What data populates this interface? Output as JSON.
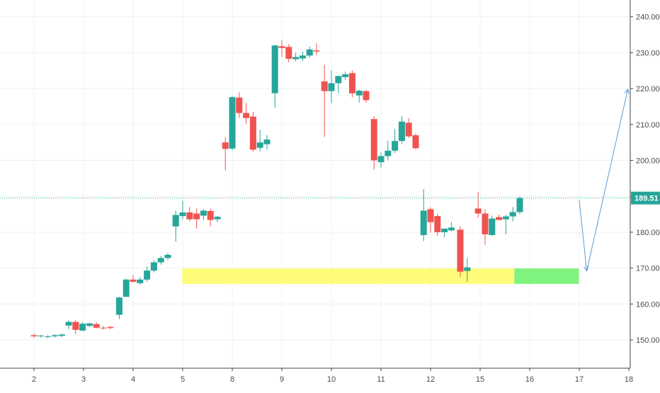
{
  "chart_data": {
    "type": "candlestick",
    "x_ticks": [
      "2",
      "3",
      "4",
      "5",
      "8",
      "9",
      "10",
      "11",
      "12",
      "15",
      "16",
      "17",
      "18"
    ],
    "y_ticks": [
      "150.00",
      "160.00",
      "170.00",
      "180.00",
      "190.00",
      "200.00",
      "210.00",
      "220.00",
      "230.00",
      "240.00"
    ],
    "y_range": [
      142,
      243
    ],
    "grid": true,
    "colors": {
      "up": "#26a69a",
      "down": "#ef5350",
      "last_price_line": "#26a69a",
      "projection_arrow": "#5b9bd5",
      "support_zone": "#fffc7a",
      "target_zone": "#80f27e"
    },
    "last_price": {
      "value": 189.51,
      "label": "189.51"
    },
    "zones": [
      {
        "name": "support-zone",
        "x": [
          2.99,
          9.69
        ],
        "y": [
          165.6,
          169.9
        ],
        "color": "#fffc7a"
      },
      {
        "name": "target-zone",
        "x": [
          9.69,
          10.99
        ],
        "y": [
          165.6,
          169.9
        ],
        "color": "#80f27e"
      }
    ],
    "projection_arrow": [
      {
        "x": 11.0,
        "y": 189
      },
      {
        "x": 11.15,
        "y": 169.2
      },
      {
        "x": 11.98,
        "y": 219.8
      }
    ],
    "candles": [
      {
        "x": 0.0,
        "o": 151.3,
        "h": 151.8,
        "l": 150.6,
        "c": 151.0
      },
      {
        "x": 0.14,
        "o": 151.0,
        "h": 151.4,
        "l": 150.6,
        "c": 151.2
      },
      {
        "x": 0.28,
        "o": 150.8,
        "h": 151.3,
        "l": 150.4,
        "c": 151.0
      },
      {
        "x": 0.42,
        "o": 151.0,
        "h": 151.6,
        "l": 150.7,
        "c": 151.3
      },
      {
        "x": 0.56,
        "o": 151.1,
        "h": 151.7,
        "l": 150.8,
        "c": 151.5
      },
      {
        "x": 0.7,
        "o": 154.0,
        "h": 155.5,
        "l": 153.0,
        "c": 155.0
      },
      {
        "x": 0.84,
        "o": 155.0,
        "h": 155.5,
        "l": 151.6,
        "c": 152.8
      },
      {
        "x": 0.98,
        "o": 152.6,
        "h": 154.9,
        "l": 152.4,
        "c": 154.5
      },
      {
        "x": 1.12,
        "o": 153.9,
        "h": 154.8,
        "l": 153.6,
        "c": 154.6
      },
      {
        "x": 1.26,
        "o": 154.4,
        "h": 154.9,
        "l": 153.2,
        "c": 153.4
      },
      {
        "x": 1.4,
        "o": 153.4,
        "h": 153.9,
        "l": 152.8,
        "c": 153.3
      },
      {
        "x": 1.54,
        "o": 153.6,
        "h": 154.0,
        "l": 152.9,
        "c": 153.3
      },
      {
        "x": 1.72,
        "o": 157.0,
        "h": 162.0,
        "l": 155.8,
        "c": 161.8
      },
      {
        "x": 1.86,
        "o": 162.0,
        "h": 167.0,
        "l": 162.0,
        "c": 166.8
      },
      {
        "x": 2.0,
        "o": 166.8,
        "h": 168.0,
        "l": 166.0,
        "c": 166.2
      },
      {
        "x": 2.14,
        "o": 165.8,
        "h": 167.5,
        "l": 165.4,
        "c": 166.8
      },
      {
        "x": 2.28,
        "o": 166.8,
        "h": 170.5,
        "l": 166.2,
        "c": 169.3
      },
      {
        "x": 2.42,
        "o": 169.3,
        "h": 172.2,
        "l": 168.8,
        "c": 171.6
      },
      {
        "x": 2.56,
        "o": 171.6,
        "h": 173.4,
        "l": 171.0,
        "c": 172.8
      },
      {
        "x": 2.7,
        "o": 172.8,
        "h": 174.2,
        "l": 172.3,
        "c": 173.7
      },
      {
        "x": 2.86,
        "o": 181.6,
        "h": 186.0,
        "l": 177.4,
        "c": 184.8
      },
      {
        "x": 3.0,
        "o": 184.5,
        "h": 188.8,
        "l": 183.6,
        "c": 185.5
      },
      {
        "x": 3.14,
        "o": 185.5,
        "h": 187.0,
        "l": 183.0,
        "c": 183.6
      },
      {
        "x": 3.28,
        "o": 185.2,
        "h": 186.6,
        "l": 181.0,
        "c": 183.6
      },
      {
        "x": 3.42,
        "o": 184.6,
        "h": 186.4,
        "l": 183.3,
        "c": 186.0
      },
      {
        "x": 3.56,
        "o": 185.9,
        "h": 186.6,
        "l": 181.6,
        "c": 183.4
      },
      {
        "x": 3.7,
        "o": 183.6,
        "h": 184.5,
        "l": 182.8,
        "c": 184.3
      },
      {
        "x": 3.86,
        "o": 205.0,
        "h": 206.5,
        "l": 197.2,
        "c": 203.2
      },
      {
        "x": 4.0,
        "o": 203.3,
        "h": 218.0,
        "l": 202.8,
        "c": 217.6
      },
      {
        "x": 4.14,
        "o": 217.5,
        "h": 219.0,
        "l": 211.8,
        "c": 213.2
      },
      {
        "x": 4.28,
        "o": 213.2,
        "h": 216.0,
        "l": 210.2,
        "c": 211.8
      },
      {
        "x": 4.42,
        "o": 212.2,
        "h": 213.5,
        "l": 202.5,
        "c": 203.0
      },
      {
        "x": 4.56,
        "o": 203.5,
        "h": 208.5,
        "l": 202.5,
        "c": 205.0
      },
      {
        "x": 4.7,
        "o": 204.5,
        "h": 207.0,
        "l": 203.0,
        "c": 205.8
      },
      {
        "x": 4.86,
        "o": 218.7,
        "h": 232.3,
        "l": 214.7,
        "c": 232.0
      },
      {
        "x": 5.0,
        "o": 231.8,
        "h": 233.5,
        "l": 228.8,
        "c": 231.3
      },
      {
        "x": 5.14,
        "o": 231.6,
        "h": 232.4,
        "l": 227.3,
        "c": 228.3
      },
      {
        "x": 5.28,
        "o": 228.2,
        "h": 230.0,
        "l": 227.6,
        "c": 228.8
      },
      {
        "x": 5.42,
        "o": 228.4,
        "h": 230.3,
        "l": 227.6,
        "c": 229.2
      },
      {
        "x": 5.56,
        "o": 229.2,
        "h": 231.7,
        "l": 228.6,
        "c": 230.9
      },
      {
        "x": 5.7,
        "o": 230.6,
        "h": 232.6,
        "l": 229.4,
        "c": 230.3
      },
      {
        "x": 5.86,
        "o": 222.0,
        "h": 226.6,
        "l": 206.5,
        "c": 219.3
      },
      {
        "x": 6.0,
        "o": 219.3,
        "h": 225.0,
        "l": 216.0,
        "c": 221.5
      },
      {
        "x": 6.14,
        "o": 221.5,
        "h": 223.6,
        "l": 218.8,
        "c": 223.5
      },
      {
        "x": 6.28,
        "o": 223.2,
        "h": 224.7,
        "l": 222.4,
        "c": 224.0
      },
      {
        "x": 6.42,
        "o": 224.3,
        "h": 225.0,
        "l": 217.6,
        "c": 218.7
      },
      {
        "x": 6.56,
        "o": 218.1,
        "h": 219.7,
        "l": 216.1,
        "c": 219.4
      },
      {
        "x": 6.7,
        "o": 219.3,
        "h": 219.6,
        "l": 216.1,
        "c": 216.8
      },
      {
        "x": 6.86,
        "o": 211.5,
        "h": 212.3,
        "l": 197.5,
        "c": 200.0
      },
      {
        "x": 7.0,
        "o": 199.5,
        "h": 202.2,
        "l": 198.0,
        "c": 201.2
      },
      {
        "x": 7.14,
        "o": 201.2,
        "h": 205.5,
        "l": 200.0,
        "c": 202.7
      },
      {
        "x": 7.28,
        "o": 202.7,
        "h": 208.8,
        "l": 202.1,
        "c": 205.4
      },
      {
        "x": 7.42,
        "o": 205.4,
        "h": 212.3,
        "l": 204.6,
        "c": 210.8
      },
      {
        "x": 7.56,
        "o": 210.5,
        "h": 211.8,
        "l": 206.2,
        "c": 206.7
      },
      {
        "x": 7.7,
        "o": 207.0,
        "h": 207.5,
        "l": 203.0,
        "c": 203.4
      },
      {
        "x": 7.86,
        "o": 179.2,
        "h": 192.0,
        "l": 177.5,
        "c": 186.0
      },
      {
        "x": 8.0,
        "o": 186.4,
        "h": 186.9,
        "l": 179.9,
        "c": 182.8
      },
      {
        "x": 8.14,
        "o": 184.5,
        "h": 185.2,
        "l": 179.0,
        "c": 180.0
      },
      {
        "x": 8.28,
        "o": 180.0,
        "h": 181.0,
        "l": 178.6,
        "c": 181.0
      },
      {
        "x": 8.42,
        "o": 180.5,
        "h": 182.8,
        "l": 180.2,
        "c": 181.3
      },
      {
        "x": 8.6,
        "o": 180.7,
        "h": 181.6,
        "l": 167.5,
        "c": 169.0
      },
      {
        "x": 8.74,
        "o": 169.2,
        "h": 172.8,
        "l": 166.2,
        "c": 170.2
      },
      {
        "x": 8.96,
        "o": 186.6,
        "h": 191.2,
        "l": 184.0,
        "c": 185.2
      },
      {
        "x": 9.1,
        "o": 185.2,
        "h": 186.4,
        "l": 176.5,
        "c": 179.4
      },
      {
        "x": 9.24,
        "o": 179.2,
        "h": 184.6,
        "l": 179.0,
        "c": 183.8
      },
      {
        "x": 9.38,
        "o": 184.2,
        "h": 184.9,
        "l": 183.3,
        "c": 183.4
      },
      {
        "x": 9.52,
        "o": 183.6,
        "h": 184.8,
        "l": 179.4,
        "c": 184.4
      },
      {
        "x": 9.66,
        "o": 184.4,
        "h": 187.0,
        "l": 183.0,
        "c": 185.6
      },
      {
        "x": 9.8,
        "o": 185.6,
        "h": 190.0,
        "l": 185.0,
        "c": 189.5
      }
    ]
  }
}
